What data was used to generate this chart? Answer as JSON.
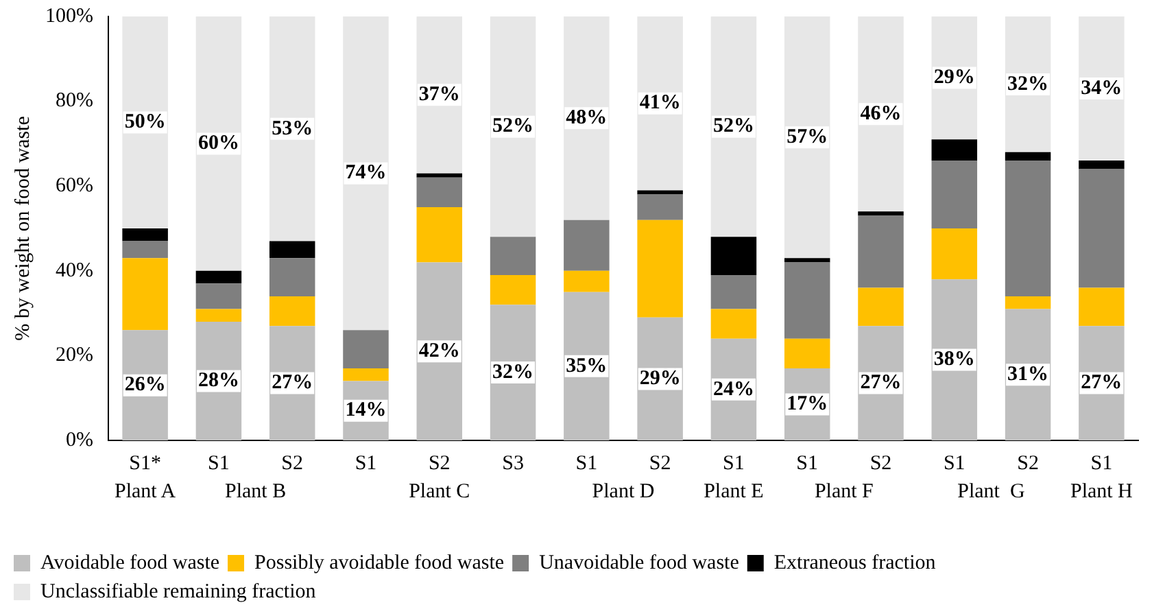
{
  "chart_data": {
    "type": "bar",
    "stacked": true,
    "ylabel": "% by weight on food waste",
    "categories": [
      "S1*",
      "S1",
      "S2",
      "S1",
      "S2",
      "S3",
      "S1",
      "S2",
      "S1",
      "S1",
      "S2",
      "S1",
      "S2",
      "S1"
    ],
    "annotations": [
      "Plant A",
      "Plant B",
      "Plant C",
      "Plant D",
      "Plant E",
      "Plant F",
      "Plant  G",
      "Plant H"
    ],
    "series": [
      {
        "name": "Avoidable food waste",
        "color": "#bfbfbf",
        "values": [
          26,
          28,
          27,
          14,
          42,
          32,
          35,
          29,
          24,
          17,
          27,
          38,
          31,
          27
        ],
        "value_labels": [
          "26%",
          "28%",
          "27%",
          "14%",
          "42%",
          "32%",
          "35%",
          "29%",
          "24%",
          "17%",
          "27%",
          "38%",
          "31%",
          "27%"
        ]
      },
      {
        "name": "Possibly avoidable food waste",
        "color": "#ffc000",
        "values": [
          17,
          3,
          7,
          3,
          13,
          7,
          5,
          23,
          7,
          7,
          9,
          12,
          3,
          9
        ]
      },
      {
        "name": "Unavoidable food waste",
        "color": "#7f7f7f",
        "values": [
          4,
          6,
          9,
          9,
          7,
          9,
          12,
          6,
          8,
          18,
          17,
          16,
          32,
          28
        ]
      },
      {
        "name": "Extraneous fraction",
        "color": "#000000",
        "values": [
          3,
          3,
          4,
          0,
          1,
          0,
          0,
          1,
          9,
          1,
          1,
          5,
          2,
          2
        ]
      },
      {
        "name": "Unclassifiable remaining fraction",
        "color": "#e7e7e7",
        "values": [
          50,
          60,
          53,
          74,
          37,
          52,
          48,
          41,
          52,
          57,
          46,
          29,
          32,
          34
        ],
        "value_labels": [
          "50%",
          "60%",
          "53%",
          "74%",
          "37%",
          "52%",
          "48%",
          "41%",
          "52%",
          "57%",
          "46%",
          "29%",
          "32%",
          "34%"
        ]
      }
    ],
    "ylim": [
      0,
      100
    ],
    "yticks": [
      {
        "value": 0,
        "label": "0%"
      },
      {
        "value": 20,
        "label": "20%"
      },
      {
        "value": 40,
        "label": "40%"
      },
      {
        "value": 60,
        "label": "60%"
      },
      {
        "value": 80,
        "label": "80%"
      },
      {
        "value": 100,
        "label": "100%"
      }
    ],
    "grid": false,
    "legend": "bottom"
  }
}
